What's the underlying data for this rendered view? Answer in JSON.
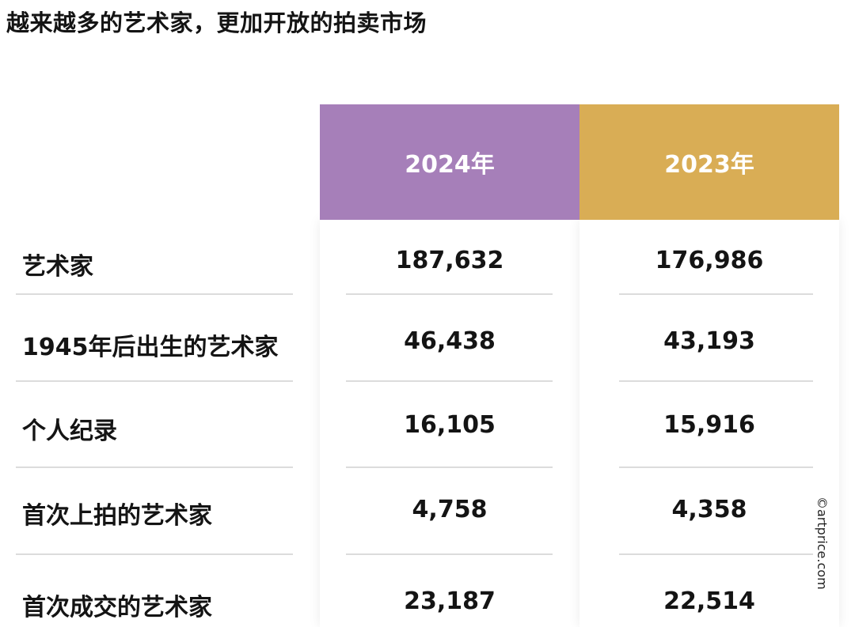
{
  "title": "越来越多的艺术家，更加开放的拍卖市场",
  "columns": [
    {
      "label": "2024年",
      "color": "#a67fb9"
    },
    {
      "label": "2023年",
      "color": "#d9ad55"
    }
  ],
  "rows": [
    {
      "label": "艺术家",
      "values": [
        "187,632",
        "176,986"
      ]
    },
    {
      "label": "1945年后出生的艺术家",
      "values": [
        "46,438",
        "43,193"
      ]
    },
    {
      "label": "个人纪录",
      "values": [
        "16,105",
        "15,916"
      ]
    },
    {
      "label": "首次上拍的艺术家",
      "values": [
        "4,758",
        "4,358"
      ]
    },
    {
      "label": "首次成交的艺术家",
      "values": [
        "23,187",
        "22,514"
      ]
    }
  ],
  "credit": "©artprice.com"
}
